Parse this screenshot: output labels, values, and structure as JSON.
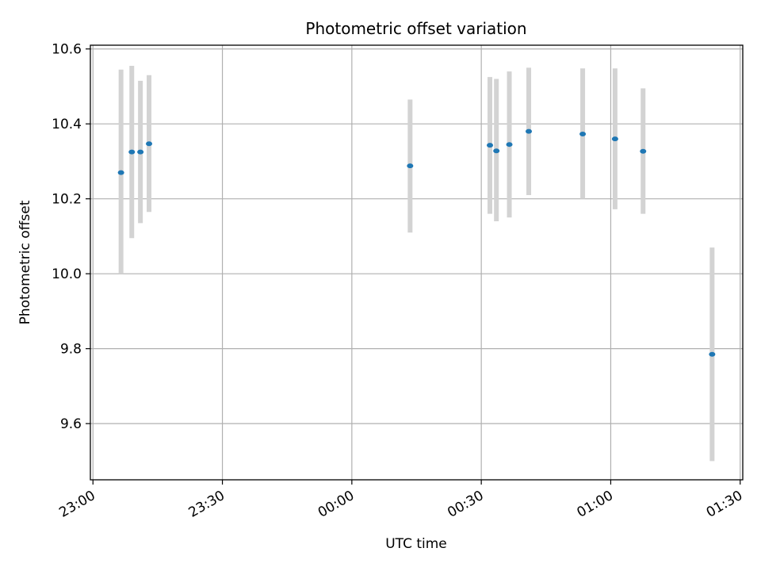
{
  "chart_data": {
    "type": "scatter",
    "title": "Photometric offset variation",
    "xlabel": "UTC time",
    "ylabel": "Photometric offset",
    "xlim": [
      "23:00",
      "01:30"
    ],
    "ylim": [
      9.45,
      10.61
    ],
    "x_ticks": [
      "23:00",
      "23:30",
      "00:00",
      "00:30",
      "01:00",
      "01:30"
    ],
    "y_ticks": [
      "9.6",
      "9.8",
      "10.0",
      "10.2",
      "10.4",
      "10.6"
    ],
    "grid": true,
    "colors": {
      "point": "#1f77b4",
      "errorbar": "#d3d3d3",
      "grid": "#b0b0b0"
    },
    "points": [
      {
        "x": "23:06:30",
        "y": 10.27,
        "err_low": 10.0,
        "err_high": 10.545
      },
      {
        "x": "23:09:00",
        "y": 10.325,
        "err_low": 10.095,
        "err_high": 10.555
      },
      {
        "x": "23:11:00",
        "y": 10.325,
        "err_low": 10.135,
        "err_high": 10.515
      },
      {
        "x": "23:13:00",
        "y": 10.347,
        "err_low": 10.165,
        "err_high": 10.53
      },
      {
        "x": "00:13:30",
        "y": 10.288,
        "err_low": 10.11,
        "err_high": 10.465
      },
      {
        "x": "00:32:00",
        "y": 10.343,
        "err_low": 10.16,
        "err_high": 10.525
      },
      {
        "x": "00:33:30",
        "y": 10.328,
        "err_low": 10.14,
        "err_high": 10.52
      },
      {
        "x": "00:36:30",
        "y": 10.345,
        "err_low": 10.15,
        "err_high": 10.54
      },
      {
        "x": "00:41:00",
        "y": 10.38,
        "err_low": 10.21,
        "err_high": 10.55
      },
      {
        "x": "00:53:30",
        "y": 10.373,
        "err_low": 10.2,
        "err_high": 10.548
      },
      {
        "x": "01:01:00",
        "y": 10.36,
        "err_low": 10.172,
        "err_high": 10.548
      },
      {
        "x": "01:07:30",
        "y": 10.327,
        "err_low": 10.16,
        "err_high": 10.495
      },
      {
        "x": "01:23:30",
        "y": 9.785,
        "err_low": 9.5,
        "err_high": 10.07
      }
    ]
  }
}
